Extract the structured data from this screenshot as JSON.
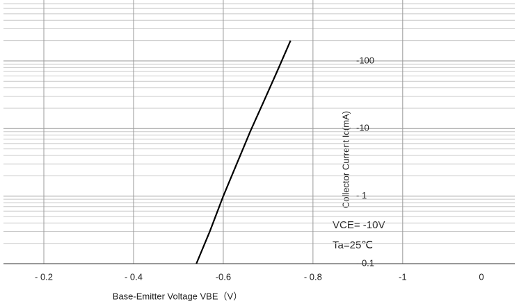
{
  "chart_data": {
    "type": "line",
    "x_label": "Base-Emitter Voltage  VBE（V）",
    "y_label": "Collector Current  Ic(mA)",
    "annotations": [
      "VCE= -10V",
      "Ta=25℃",
      "0"
    ],
    "series": [
      {
        "name": "Ic",
        "color": "#000000",
        "x": [
          -0.54,
          -0.57,
          -0.6,
          -0.63,
          -0.66,
          -0.69,
          -0.72,
          -0.75
        ],
        "values": [
          0.1,
          0.3,
          1,
          3,
          9,
          25,
          70,
          200
        ]
      }
    ],
    "xlim": [
      -0.11,
      -1.25
    ],
    "xticks": [
      {
        "value": -0.2,
        "label": "- 0.2"
      },
      {
        "value": -0.4,
        "label": "- 0.4"
      },
      {
        "value": -0.6,
        "label": "-0.6"
      },
      {
        "value": -0.8,
        "label": "- 0.8"
      },
      {
        "value": -1,
        "label": "-1"
      }
    ],
    "ylim": [
      0.1,
      800
    ],
    "yticks": [
      {
        "value": 0.1,
        "label": "- 0.1"
      },
      {
        "value": 1,
        "label": "- 1"
      },
      {
        "value": 10,
        "label": "-10"
      },
      {
        "value": 100,
        "label": "-100"
      }
    ],
    "log_y": true,
    "grid": true,
    "minor_grid": true
  }
}
